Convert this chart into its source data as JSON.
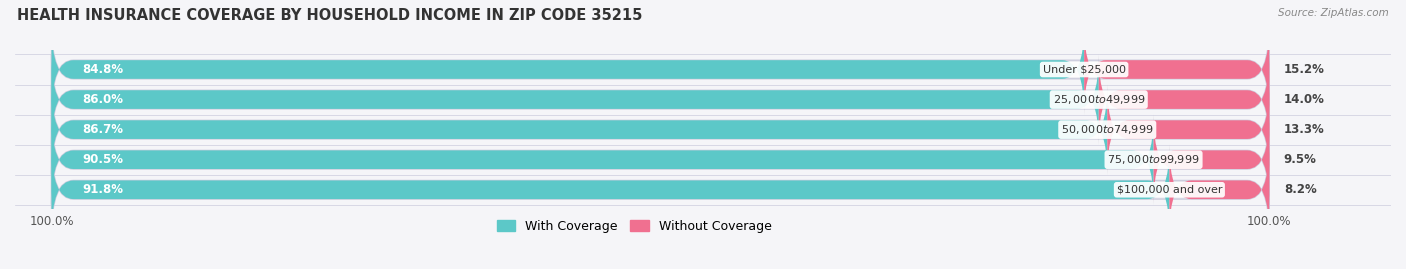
{
  "title": "HEALTH INSURANCE COVERAGE BY HOUSEHOLD INCOME IN ZIP CODE 35215",
  "source": "Source: ZipAtlas.com",
  "categories": [
    "Under $25,000",
    "$25,000 to $49,999",
    "$50,000 to $74,999",
    "$75,000 to $99,999",
    "$100,000 and over"
  ],
  "with_coverage": [
    84.8,
    86.0,
    86.7,
    90.5,
    91.8
  ],
  "without_coverage": [
    15.2,
    14.0,
    13.3,
    9.5,
    8.2
  ],
  "color_with": "#5CC8C8",
  "color_without": "#F07090",
  "bar_bg_color": "#e8e8ee",
  "background_color": "#f5f5f8",
  "title_fontsize": 10.5,
  "label_fontsize": 8.5,
  "cat_fontsize": 8.0,
  "tick_fontsize": 8.5,
  "legend_fontsize": 9,
  "bar_height": 0.62
}
